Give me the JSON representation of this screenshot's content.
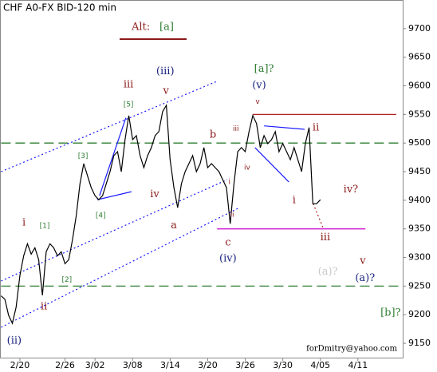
{
  "chart_data": {
    "type": "line",
    "title": "CHF A0-FX BID-120 min",
    "alt_label": {
      "text": "Alt:",
      "color": "#8b1a1a"
    },
    "alt_wave": {
      "text": "[a]",
      "color": "#2e7d32"
    },
    "credit": "forDmitry@yahoo.com",
    "ylim": [
      9125,
      9750
    ],
    "yticks": [
      9150,
      9200,
      9250,
      9300,
      9350,
      9400,
      9450,
      9500,
      9550,
      9600,
      9650,
      9700
    ],
    "categories": [
      null,
      null,
      null,
      null,
      null,
      "2/20",
      null,
      null,
      null,
      null,
      null,
      null,
      null,
      null,
      null,
      null,
      null,
      "2/26",
      null,
      null,
      null,
      null,
      null,
      null,
      null,
      "3/02",
      null,
      null,
      null,
      null,
      null,
      null,
      null,
      null,
      null,
      "3/08",
      null,
      null,
      null,
      null,
      null,
      null,
      null,
      null,
      null,
      "3/14",
      null,
      null,
      null,
      null,
      null,
      null,
      null,
      null,
      null,
      "3/20",
      null,
      null,
      null,
      null,
      null,
      null,
      null,
      null,
      null,
      "3/26",
      null,
      null,
      null,
      null,
      null,
      null,
      null,
      null,
      null,
      "3/30",
      null,
      null,
      null,
      null,
      null,
      null,
      null,
      null,
      null,
      "4/05",
      null,
      null,
      null,
      null,
      null,
      null,
      null,
      null,
      null,
      "4/11",
      null,
      null,
      null,
      null,
      null,
      null,
      null,
      null,
      null,
      null,
      null,
      null
    ],
    "series": [
      {
        "color": "#000000",
        "values": [
          9233,
          9227,
          9199,
          9185,
          9213,
          9268,
          9303,
          9324,
          9306,
          9317,
          9296,
          9234,
          9310,
          9324,
          9317,
          9303,
          9310,
          9289,
          9296,
          9331,
          9373,
          9429,
          9464,
          9443,
          9422,
          9408,
          9401,
          9408,
          9429,
          9450,
          9478,
          9485,
          9450,
          9506,
          9548,
          9506,
          9513,
          9478,
          9457,
          9478,
          9492,
          9513,
          9520,
          9555,
          9566,
          9471,
          9422,
          9387,
          9429,
          9450,
          9464,
          9478,
          9450,
          9464,
          9492,
          9457,
          9464,
          9457,
          9450,
          9436,
          9422,
          9359,
          9429,
          9485,
          9492,
          9485,
          9520,
          9548,
          9534,
          9492,
          9513,
          9499,
          9506,
          9520,
          9485,
          9499,
          9485,
          9471,
          9492,
          9471,
          9450,
          9499,
          9527,
          9394,
          9394,
          9401,
          null,
          null,
          null,
          null,
          null,
          null,
          null,
          null,
          null,
          null,
          null,
          null,
          null,
          null,
          null,
          null,
          null,
          null,
          null,
          null,
          null,
          null
        ]
      }
    ],
    "hlines": [
      {
        "value": 9500,
        "from": 0,
        "to": 107,
        "color": "#2e7d32",
        "style": "dashed"
      },
      {
        "value": 9250,
        "from": 0,
        "to": 107,
        "color": "#2e7d32",
        "style": "dashed"
      },
      {
        "value": 9550,
        "from": 67,
        "to": 105.2,
        "color": "#b22222",
        "style": "solid"
      },
      {
        "value": 9350,
        "from": 57.5,
        "to": 97,
        "color": "#cc00cc",
        "style": "solid"
      }
    ],
    "trendlines": [
      {
        "x": [
          0,
          57.5
        ],
        "y": [
          9450,
          9608
        ],
        "color": "#1a1aff",
        "style": "dotted"
      },
      {
        "x": [
          0,
          60.2
        ],
        "y": [
          9259,
          9436
        ],
        "color": "#1a1aff",
        "style": "dotted"
      },
      {
        "x": [
          0,
          63.4
        ],
        "y": [
          9178,
          9387
        ],
        "color": "#1a1aff",
        "style": "dotted"
      },
      {
        "x": [
          25.6,
          34.7
        ],
        "y": [
          9401,
          9415
        ],
        "color": "#1a1aff",
        "style": "solid"
      },
      {
        "x": [
          26.2,
          33.2
        ],
        "y": [
          9408,
          9544
        ],
        "color": "#1a1aff",
        "style": "solid"
      },
      {
        "x": [
          70,
          80.8
        ],
        "y": [
          9530,
          9524
        ],
        "color": "#1a1aff",
        "style": "solid"
      },
      {
        "x": [
          67.6,
          76.6
        ],
        "y": [
          9492,
          9432
        ],
        "color": "#1a1aff",
        "style": "solid"
      },
      {
        "x": [
          83.1,
          85.7
        ],
        "y": [
          9394,
          9352
        ],
        "color": "#b22222",
        "style": "dotted"
      }
    ],
    "annotations": [
      {
        "text": "(ii)",
        "x": 3.5,
        "y": 9154,
        "color": "#1a237e"
      },
      {
        "text": "i",
        "x": 6.1,
        "y": 9361,
        "color": "#8b1a1a"
      },
      {
        "text": "ii",
        "x": 11.4,
        "y": 9214,
        "color": "#8b1a1a"
      },
      {
        "text": "[1]",
        "x": 11.6,
        "y": 9355,
        "color": "#2e7d32",
        "size": "small"
      },
      {
        "text": "[2]",
        "x": 17.5,
        "y": 9261,
        "color": "#2e7d32",
        "size": "small"
      },
      {
        "text": "[3]",
        "x": 21.8,
        "y": 9477,
        "color": "#2e7d32",
        "size": "small"
      },
      {
        "text": "[4]",
        "x": 26.5,
        "y": 9373,
        "color": "#2e7d32",
        "size": "small"
      },
      {
        "text": "[5]",
        "x": 33.9,
        "y": 9567,
        "color": "#2e7d32",
        "size": "small"
      },
      {
        "text": "iii",
        "x": 33.9,
        "y": 9602,
        "color": "#8b1a1a"
      },
      {
        "text": "(iii)",
        "x": 43.7,
        "y": 9625,
        "color": "#1a237e"
      },
      {
        "text": "v",
        "x": 43.9,
        "y": 9591,
        "color": "#8b1a1a"
      },
      {
        "text": "iv",
        "x": 40.9,
        "y": 9410,
        "color": "#8b1a1a"
      },
      {
        "text": "a",
        "x": 46,
        "y": 9356,
        "color": "#8b1a1a"
      },
      {
        "text": "b",
        "x": 56.4,
        "y": 9514,
        "color": "#8b1a1a"
      },
      {
        "text": "i",
        "x": 60.8,
        "y": 9432,
        "color": "#8b1a1a",
        "size": "small"
      },
      {
        "text": "ii",
        "x": 61.5,
        "y": 9375,
        "color": "#8b1a1a",
        "size": "small"
      },
      {
        "text": "iii",
        "x": 62.5,
        "y": 9525,
        "color": "#8b1a1a",
        "size": "small"
      },
      {
        "text": "iv",
        "x": 65.5,
        "y": 9457,
        "color": "#8b1a1a",
        "size": "small"
      },
      {
        "text": "c",
        "x": 60.4,
        "y": 9326,
        "color": "#8b1a1a"
      },
      {
        "text": "(iv)",
        "x": 60.4,
        "y": 9298,
        "color": "#1a237e"
      },
      {
        "text": "[a]?",
        "x": 70,
        "y": 9629,
        "color": "#2e7d32"
      },
      {
        "text": "(v)",
        "x": 68.7,
        "y": 9601,
        "color": "#1a237e"
      },
      {
        "text": "v",
        "x": 68.3,
        "y": 9572,
        "color": "#8b1a1a",
        "size": "small"
      },
      {
        "text": "ii",
        "x": 83.8,
        "y": 9527,
        "color": "#8b1a1a"
      },
      {
        "text": "i",
        "x": 78,
        "y": 9400,
        "color": "#8b1a1a"
      },
      {
        "text": "iv?",
        "x": 93.1,
        "y": 9419,
        "color": "#8b1a1a"
      },
      {
        "text": "iii",
        "x": 86.3,
        "y": 9335,
        "color": "#8b1a1a"
      },
      {
        "text": "(a)?",
        "x": 87,
        "y": 9275,
        "color": "#c8c8c8"
      },
      {
        "text": "v",
        "x": 96.3,
        "y": 9294,
        "color": "#8b1a1a"
      },
      {
        "text": "(a)?",
        "x": 96.9,
        "y": 9264,
        "color": "#1a237e"
      },
      {
        "text": "[b]?",
        "x": 103.7,
        "y": 9203,
        "color": "#2e7d32"
      }
    ]
  }
}
